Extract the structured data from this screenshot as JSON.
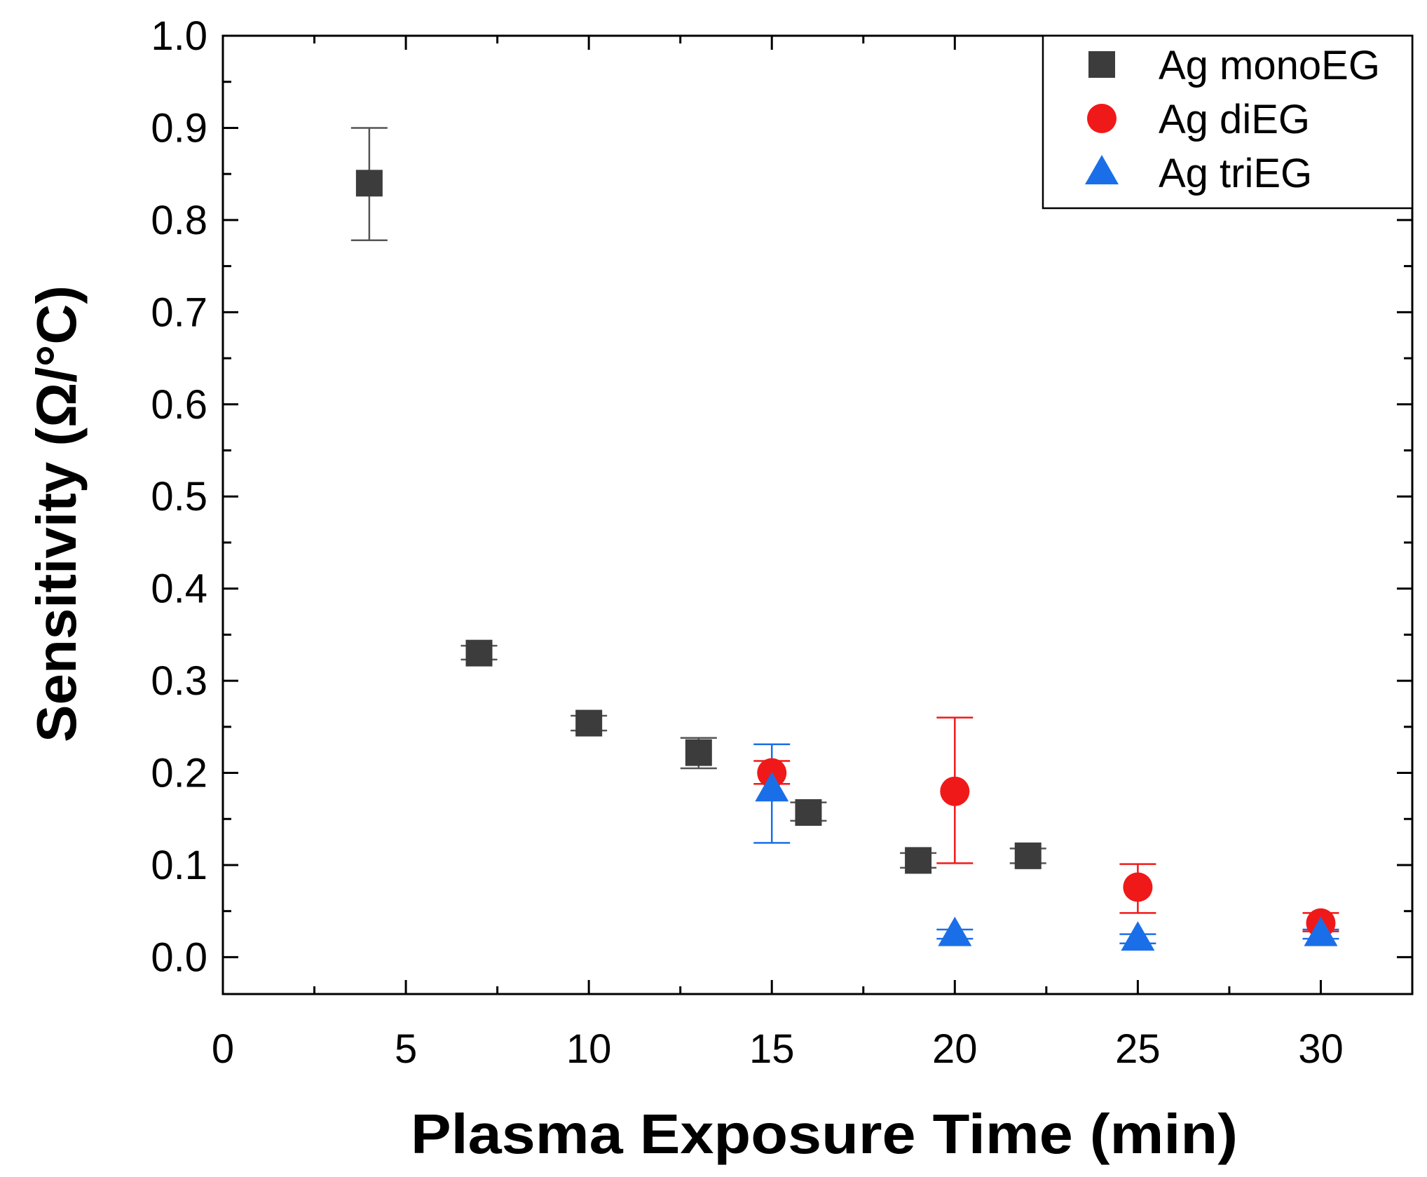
{
  "chart_data": {
    "type": "scatter",
    "title": "",
    "xlabel": "Plasma Exposure Time (min)",
    "ylabel": "Sensitivity (Ω/°C)",
    "xlim": [
      0,
      32.5
    ],
    "ylim": [
      -0.04,
      1.0
    ],
    "xticks": [
      0,
      5,
      10,
      15,
      20,
      25,
      30
    ],
    "xtick_labels": [
      "0",
      "5",
      "10",
      "15",
      "20",
      "25",
      "30"
    ],
    "yticks": [
      0.0,
      0.1,
      0.2,
      0.3,
      0.4,
      0.5,
      0.6,
      0.7,
      0.8,
      0.9,
      1.0
    ],
    "ytick_labels": [
      "0.0",
      "0.1",
      "0.2",
      "0.3",
      "0.4",
      "0.5",
      "0.6",
      "0.7",
      "0.8",
      "0.9",
      "1.0"
    ],
    "grid": false,
    "legend_position": "top-right",
    "series": [
      {
        "name": "Ag monoEG",
        "marker": "square",
        "color": "#3c3c3c",
        "points": [
          {
            "x": 4,
            "y": 0.84,
            "err_low": 0.778,
            "err_high": 0.9
          },
          {
            "x": 7,
            "y": 0.33,
            "err_low": 0.323,
            "err_high": 0.338
          },
          {
            "x": 10,
            "y": 0.254,
            "err_low": 0.246,
            "err_high": 0.262
          },
          {
            "x": 13,
            "y": 0.222,
            "err_low": 0.205,
            "err_high": 0.238
          },
          {
            "x": 16,
            "y": 0.157,
            "err_low": 0.148,
            "err_high": 0.168
          },
          {
            "x": 19,
            "y": 0.105,
            "err_low": 0.097,
            "err_high": 0.113
          },
          {
            "x": 22,
            "y": 0.11,
            "err_low": 0.102,
            "err_high": 0.118
          }
        ]
      },
      {
        "name": "Ag diEG",
        "marker": "circle",
        "color": "#f01919",
        "points": [
          {
            "x": 15,
            "y": 0.2,
            "err_low": 0.188,
            "err_high": 0.213
          },
          {
            "x": 20,
            "y": 0.18,
            "err_low": 0.102,
            "err_high": 0.26
          },
          {
            "x": 25,
            "y": 0.076,
            "err_low": 0.048,
            "err_high": 0.101
          },
          {
            "x": 30,
            "y": 0.037,
            "err_low": 0.028,
            "err_high": 0.048
          }
        ]
      },
      {
        "name": "Ag triEG",
        "marker": "triangle",
        "color": "#1a6fe8",
        "points": [
          {
            "x": 15,
            "y": 0.182,
            "err_low": 0.124,
            "err_high": 0.231
          },
          {
            "x": 20,
            "y": 0.025,
            "err_low": 0.02,
            "err_high": 0.03
          },
          {
            "x": 25,
            "y": 0.02,
            "err_low": 0.015,
            "err_high": 0.025
          },
          {
            "x": 30,
            "y": 0.025,
            "err_low": 0.02,
            "err_high": 0.03
          }
        ]
      }
    ]
  }
}
